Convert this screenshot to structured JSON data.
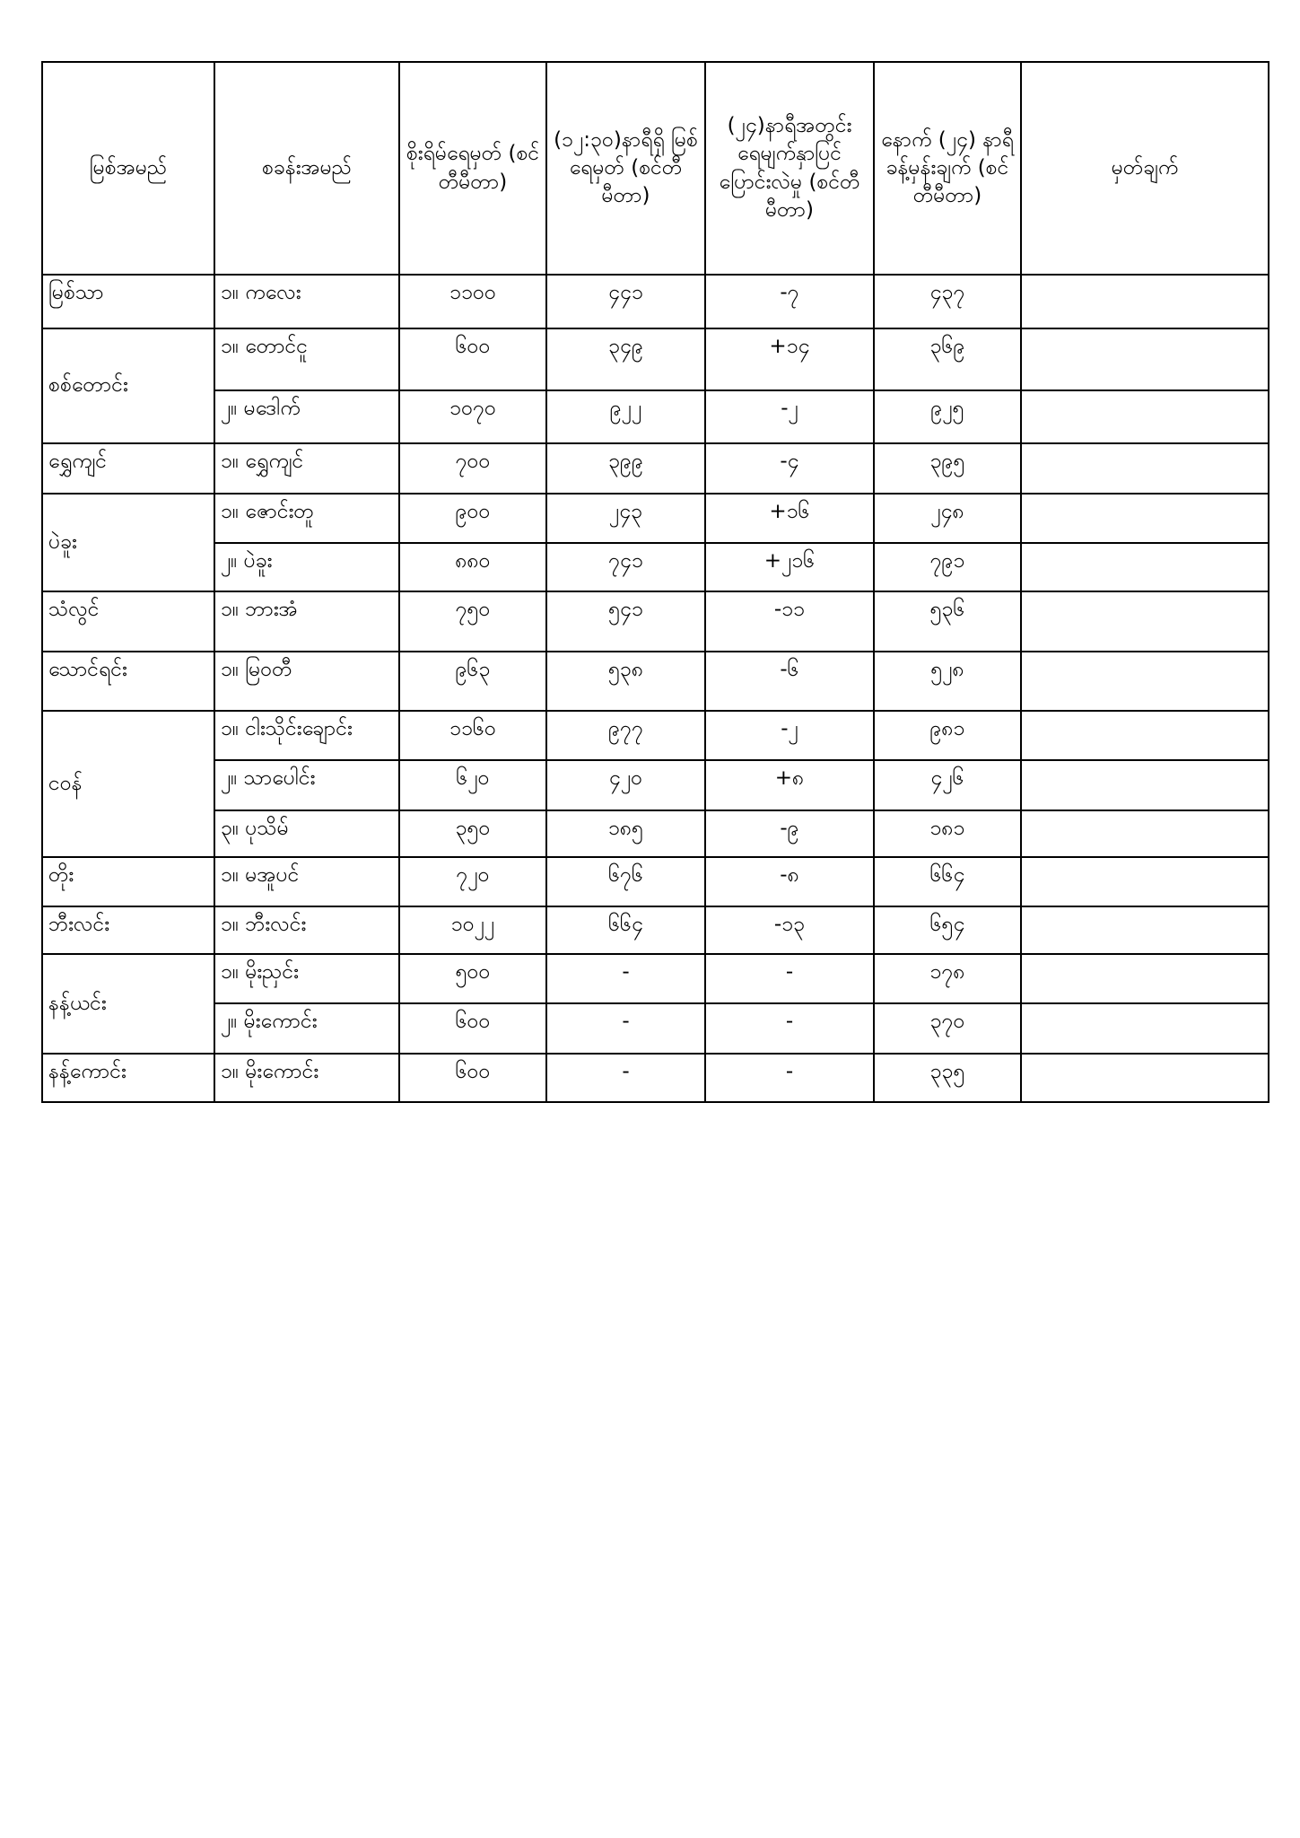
{
  "headers": [
    "မြစ်အမည်",
    "စခန်းအမည်",
    "စိုးရိမ်ရေမှတ် (စင်တီမီတာ)",
    "(၁၂:၃၀)နာရီရှိ မြစ်ရေမှတ် (စင်တီမီတာ)",
    "(၂၄)နာရီအတွင်း ရေမျက်နှာပြင် ပြောင်းလဲမှု (စင်တီမီတာ)",
    "နောက် (၂၄) နာရီ ခန့်မှန်းချက် (စင်တီမီတာ)",
    "မှတ်ချက်"
  ],
  "rows": [
    {
      "river": "မြစ်သာ",
      "span": 1,
      "station": "၁။ ကလေး",
      "danger": "၁၁၀၀",
      "level": "၄၄၁",
      "change": "-၇",
      "forecast": "၄၃၇",
      "remark": ""
    },
    {
      "river": "စစ်တောင်း",
      "span": 2,
      "station": "၁။ တောင်ငူ",
      "danger": "၆၀၀",
      "level": "၃၄၉",
      "change": "+၁၄",
      "forecast": "၃၆၉",
      "remark": ""
    },
    {
      "river": null,
      "station": "၂။ မဒေါက်",
      "danger": "၁၀၇၀",
      "level": "၉၂၂",
      "change": "-၂",
      "forecast": "၉၂၅",
      "remark": ""
    },
    {
      "river": "ရွှေကျင်",
      "span": 1,
      "station": "၁။ ရွှေကျင်",
      "danger": "၇၀၀",
      "level": "၃၉၉",
      "change": "-၄",
      "forecast": "၃၉၅",
      "remark": ""
    },
    {
      "river": "ပဲခူး",
      "span": 2,
      "station": "၁။ ဇောင်းတူ",
      "danger": "၉၀၀",
      "level": "၂၄၃",
      "change": "+၁၆",
      "forecast": "၂၄၈",
      "remark": ""
    },
    {
      "river": null,
      "station": "၂။ ပဲခူး",
      "danger": "၈၈၀",
      "level": "၇၄၁",
      "change": "+၂၁၆",
      "forecast": "၇၉၁",
      "remark": ""
    },
    {
      "river": "သံလွင်",
      "span": 1,
      "station": "၁။ ဘားအံ",
      "danger": "၇၅၀",
      "level": "၅၄၁",
      "change": "-၁၁",
      "forecast": "၅၃၆",
      "remark": ""
    },
    {
      "river": "သောင်ရင်း",
      "span": 1,
      "station": "၁။ မြဝတီ",
      "danger": "၉၆၃",
      "level": "၅၃၈",
      "change": "-၆",
      "forecast": "၅၂၈",
      "remark": ""
    },
    {
      "river": "ငဝန်",
      "span": 3,
      "station": "၁။ ငါးသိုင်းချောင်း",
      "danger": "၁၁၆၀",
      "level": "၉၇၇",
      "change": "-၂",
      "forecast": "၉၈၁",
      "remark": ""
    },
    {
      "river": null,
      "station": "၂။ သာပေါင်း",
      "danger": "၆၂၀",
      "level": "၄၂၀",
      "change": "+၈",
      "forecast": "၄၂၆",
      "remark": ""
    },
    {
      "river": null,
      "station": "၃။ ပုသိမ်",
      "danger": "၃၅၀",
      "level": "၁၈၅",
      "change": "-၉",
      "forecast": "၁၈၁",
      "remark": ""
    },
    {
      "river": "တိုး",
      "span": 1,
      "station": "၁။ မအူပင်",
      "danger": "၇၂၀",
      "level": "၆၇၆",
      "change": "-၈",
      "forecast": "၆၆၄",
      "remark": ""
    },
    {
      "river": "ဘီးလင်း",
      "span": 1,
      "station": "၁။ ဘီးလင်း",
      "danger": "၁၀၂၂",
      "level": "၆၆၄",
      "change": "-၁၃",
      "forecast": "၆၅၄",
      "remark": ""
    },
    {
      "river": "နန့်ယင်း",
      "span": 2,
      "station": "၁။ မိုးညှင်း",
      "danger": "၅၀၀",
      "level": "-",
      "change": "-",
      "forecast": "၁၇၈",
      "remark": ""
    },
    {
      "river": null,
      "station": "၂။ မိုးကောင်း",
      "danger": "၆၀၀",
      "level": "-",
      "change": "-",
      "forecast": "၃၇၀",
      "remark": ""
    },
    {
      "river": "နန့်ကောင်း",
      "span": 1,
      "station": "၁။ မိုးကောင်း",
      "danger": "၆၀၀",
      "level": "-",
      "change": "-",
      "forecast": "၃၃၅",
      "remark": ""
    }
  ]
}
